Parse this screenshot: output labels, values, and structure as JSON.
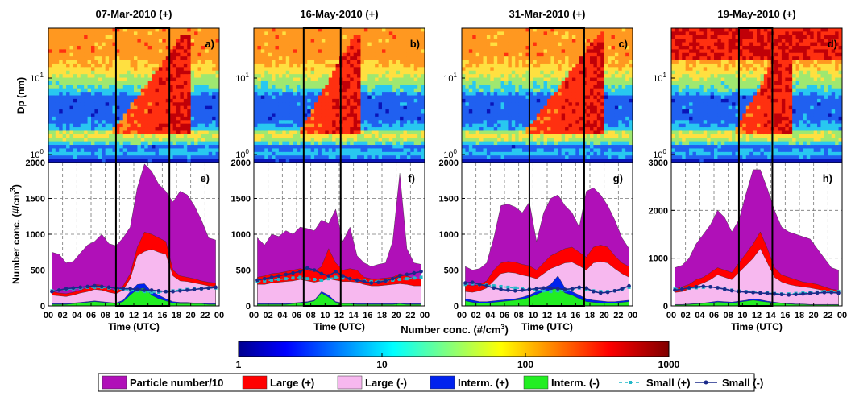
{
  "figure": {
    "colorbar_title": "Number conc. (#/cm",
    "colorbar_title_sup": "3",
    "colorbar_title_end": ")",
    "colorbar_ticks": [
      "1",
      "10",
      "100",
      "1000"
    ],
    "legend": [
      {
        "label": "Particle number/10",
        "color": "#b010b8",
        "style": "patch"
      },
      {
        "label": "Large (+)",
        "color": "#ff0000",
        "style": "patch"
      },
      {
        "label": "Large (-)",
        "color": "#f7b8ef",
        "style": "patch"
      },
      {
        "label": "Interm. (+)",
        "color": "#0022ee",
        "style": "patch"
      },
      {
        "label": "Interm. (-)",
        "color": "#22ee22",
        "style": "patch"
      },
      {
        "label": "Small (+)",
        "color": "#22b8c8",
        "style": "dashed-square"
      },
      {
        "label": "Small (-)",
        "color": "#1a2a8a",
        "style": "solid-dot"
      }
    ],
    "shared_labels": {
      "top_ylabel": "Dp (nm)",
      "bottom_ylabel": "Number conc. (#/cm",
      "bottom_ylabel_sup": "3",
      "bottom_ylabel_end": ")",
      "xlabel": "Time (UTC)",
      "xticks": [
        "00",
        "02",
        "04",
        "06",
        "08",
        "10",
        "12",
        "14",
        "16",
        "18",
        "20",
        "22",
        "00"
      ],
      "dp_ticks": [
        {
          "base": "10",
          "exp": "0"
        },
        {
          "base": "10",
          "exp": "1"
        }
      ]
    }
  },
  "chart_data": [
    {
      "type": "area",
      "title": "07-Mar-2010 (+)",
      "top_letter": "a)",
      "bottom_letter": "e)",
      "box_hours": [
        9.5,
        17
      ],
      "x": [
        0,
        1,
        2,
        3,
        4,
        5,
        6,
        7,
        8,
        9,
        10,
        11,
        12,
        13,
        14,
        15,
        16,
        17,
        18,
        19,
        20,
        21,
        22,
        23
      ],
      "ylim": [
        0,
        2000
      ],
      "yticks": [
        0,
        500,
        1000,
        1500,
        2000
      ],
      "series": [
        {
          "name": "Particle number/10",
          "values": [
            750,
            720,
            600,
            620,
            740,
            850,
            900,
            1000,
            870,
            840,
            950,
            1100,
            1650,
            1980,
            1880,
            1700,
            1600,
            1450,
            1600,
            1550,
            1400,
            1200,
            950,
            920
          ]
        },
        {
          "name": "Large (+)",
          "values": [
            200,
            180,
            170,
            190,
            220,
            260,
            300,
            290,
            240,
            210,
            280,
            450,
            820,
            1030,
            1000,
            950,
            900,
            500,
            420,
            400,
            380,
            350,
            330,
            320
          ]
        },
        {
          "name": "Large (-)",
          "values": [
            150,
            140,
            130,
            150,
            180,
            200,
            230,
            220,
            190,
            170,
            220,
            380,
            700,
            760,
            790,
            750,
            720,
            420,
            350,
            340,
            320,
            300,
            280,
            270
          ]
        },
        {
          "name": "Interm. (+)",
          "values": [
            30,
            30,
            30,
            40,
            50,
            60,
            70,
            60,
            50,
            40,
            80,
            200,
            300,
            310,
            200,
            150,
            100,
            60,
            50,
            50,
            40,
            40,
            30,
            30
          ]
        },
        {
          "name": "Interm. (-)",
          "values": [
            20,
            20,
            20,
            30,
            40,
            50,
            60,
            50,
            40,
            30,
            60,
            150,
            230,
            250,
            150,
            100,
            70,
            40,
            30,
            30,
            30,
            30,
            20,
            20
          ]
        },
        {
          "name": "Small (+)",
          "values": [
            210,
            220,
            230,
            240,
            250,
            260,
            260,
            260,
            250,
            240,
            230,
            220,
            210,
            200,
            190,
            190,
            200,
            210,
            220,
            230,
            240,
            240,
            250,
            250
          ]
        },
        {
          "name": "Small (-)",
          "values": [
            200,
            220,
            240,
            250,
            260,
            270,
            280,
            270,
            260,
            250,
            240,
            240,
            230,
            220,
            220,
            210,
            200,
            200,
            210,
            220,
            230,
            240,
            250,
            260
          ]
        }
      ]
    },
    {
      "type": "area",
      "title": "16-May-2010 (+)",
      "top_letter": "b)",
      "bottom_letter": "f)",
      "box_hours": [
        7,
        12.2
      ],
      "x": [
        0,
        1,
        2,
        3,
        4,
        5,
        6,
        7,
        8,
        9,
        10,
        11,
        12,
        13,
        14,
        15,
        16,
        17,
        18,
        19,
        20,
        21,
        22,
        23
      ],
      "ylim": [
        0,
        2000
      ],
      "yticks": [
        0,
        500,
        1000,
        1500,
        2000
      ],
      "series": [
        {
          "name": "Particle number/10",
          "values": [
            950,
            850,
            1000,
            970,
            1050,
            1000,
            1100,
            1080,
            1050,
            1200,
            1150,
            1350,
            900,
            1100,
            700,
            600,
            550,
            580,
            600,
            900,
            1850,
            800,
            600,
            580
          ]
        },
        {
          "name": "Large (+)",
          "values": [
            400,
            420,
            450,
            460,
            480,
            500,
            520,
            500,
            480,
            550,
            800,
            600,
            500,
            520,
            500,
            400,
            380,
            380,
            390,
            400,
            450,
            420,
            380,
            380
          ]
        },
        {
          "name": "Large (-)",
          "values": [
            300,
            300,
            320,
            330,
            340,
            350,
            370,
            350,
            330,
            350,
            380,
            360,
            340,
            340,
            330,
            300,
            280,
            280,
            290,
            300,
            310,
            300,
            280,
            280
          ]
        },
        {
          "name": "Interm. (+)",
          "values": [
            30,
            30,
            30,
            30,
            30,
            40,
            50,
            60,
            80,
            200,
            150,
            60,
            40,
            40,
            30,
            30,
            30,
            30,
            30,
            30,
            40,
            30,
            30,
            30
          ]
        },
        {
          "name": "Interm. (-)",
          "values": [
            20,
            20,
            20,
            20,
            20,
            30,
            40,
            50,
            70,
            180,
            120,
            50,
            30,
            30,
            20,
            20,
            20,
            20,
            20,
            20,
            30,
            20,
            20,
            20
          ]
        },
        {
          "name": "Small (+)",
          "values": [
            340,
            350,
            360,
            370,
            380,
            390,
            400,
            380,
            370,
            360,
            380,
            400,
            390,
            380,
            360,
            350,
            340,
            340,
            350,
            360,
            370,
            380,
            390,
            400
          ]
        },
        {
          "name": "Small (-)",
          "values": [
            360,
            380,
            400,
            420,
            440,
            460,
            480,
            530,
            500,
            450,
            420,
            480,
            420,
            380,
            360,
            340,
            320,
            330,
            350,
            380,
            420,
            440,
            460,
            480
          ]
        }
      ]
    },
    {
      "type": "area",
      "title": "31-Mar-2010 (+)",
      "top_letter": "c)",
      "bottom_letter": "g)",
      "box_hours": [
        9.5,
        17.2
      ],
      "x": [
        0,
        1,
        2,
        3,
        4,
        5,
        6,
        7,
        8,
        9,
        10,
        11,
        12,
        13,
        14,
        15,
        16,
        17,
        18,
        19,
        20,
        21,
        22,
        23
      ],
      "ylim": [
        0,
        2000
      ],
      "yticks": [
        0,
        500,
        1000,
        1500,
        2000
      ],
      "series": [
        {
          "name": "Particle number/10",
          "values": [
            550,
            500,
            520,
            600,
            950,
            1400,
            1420,
            1380,
            1300,
            1450,
            900,
            1300,
            1500,
            1550,
            1400,
            1300,
            1100,
            1600,
            1650,
            1550,
            1400,
            1200,
            950,
            800
          ]
        },
        {
          "name": "Large (+)",
          "values": [
            300,
            280,
            300,
            350,
            500,
            600,
            620,
            610,
            580,
            560,
            500,
            600,
            700,
            750,
            800,
            820,
            750,
            680,
            820,
            850,
            820,
            700,
            600,
            550
          ]
        },
        {
          "name": "Large (-)",
          "values": [
            200,
            190,
            210,
            250,
            350,
            450,
            470,
            460,
            430,
            410,
            380,
            450,
            520,
            560,
            600,
            610,
            560,
            500,
            600,
            620,
            600,
            520,
            450,
            400
          ]
        },
        {
          "name": "Interm. (+)",
          "values": [
            100,
            80,
            60,
            60,
            70,
            80,
            90,
            100,
            120,
            150,
            200,
            250,
            300,
            420,
            250,
            200,
            150,
            100,
            80,
            70,
            60,
            60,
            70,
            80
          ]
        },
        {
          "name": "Interm. (-)",
          "values": [
            70,
            50,
            40,
            40,
            50,
            60,
            70,
            80,
            90,
            120,
            160,
            200,
            220,
            260,
            180,
            150,
            100,
            60,
            50,
            40,
            40,
            40,
            50,
            60
          ]
        },
        {
          "name": "Small (+)",
          "values": [
            300,
            310,
            300,
            290,
            280,
            270,
            260,
            250,
            240,
            230,
            220,
            210,
            200,
            210,
            220,
            230,
            250,
            230,
            210,
            200,
            200,
            210,
            230,
            260
          ]
        },
        {
          "name": "Small (-)",
          "values": [
            320,
            330,
            300,
            280,
            250,
            230,
            220,
            210,
            220,
            230,
            240,
            250,
            250,
            240,
            230,
            240,
            260,
            250,
            200,
            180,
            190,
            210,
            240,
            280
          ]
        }
      ]
    },
    {
      "type": "area",
      "title": "19-May-2010 (+)",
      "top_letter": "d)",
      "bottom_letter": "h)",
      "box_hours": [
        9.5,
        14.2
      ],
      "x": [
        0,
        1,
        2,
        3,
        4,
        5,
        6,
        7,
        8,
        9,
        10,
        11,
        12,
        13,
        14,
        15,
        16,
        17,
        18,
        19,
        20,
        21,
        22,
        23
      ],
      "ylim": [
        0,
        3000
      ],
      "yticks": [
        0,
        1000,
        2000,
        3000
      ],
      "series": [
        {
          "name": "Particle number/10",
          "values": [
            800,
            850,
            1000,
            1300,
            1500,
            1700,
            2000,
            1850,
            1550,
            1800,
            2350,
            2850,
            2850,
            2450,
            2000,
            1650,
            1550,
            1500,
            1450,
            1400,
            1200,
            1000,
            800,
            750
          ]
        },
        {
          "name": "Large (+)",
          "values": [
            350,
            400,
            450,
            550,
            600,
            700,
            800,
            750,
            700,
            900,
            1100,
            1300,
            1550,
            1200,
            800,
            650,
            600,
            550,
            500,
            480,
            450,
            400,
            350,
            330
          ]
        },
        {
          "name": "Large (-)",
          "values": [
            280,
            300,
            350,
            420,
            480,
            550,
            650,
            600,
            550,
            700,
            850,
            1000,
            1200,
            900,
            600,
            500,
            450,
            420,
            400,
            380,
            350,
            320,
            280,
            260
          ]
        },
        {
          "name": "Interm. (+)",
          "values": [
            30,
            30,
            40,
            50,
            60,
            80,
            100,
            90,
            80,
            100,
            120,
            150,
            130,
            100,
            80,
            60,
            50,
            40,
            40,
            30,
            30,
            30,
            30,
            30
          ]
        },
        {
          "name": "Interm. (-)",
          "values": [
            20,
            20,
            30,
            40,
            50,
            60,
            80,
            70,
            60,
            80,
            100,
            120,
            100,
            80,
            60,
            50,
            40,
            30,
            30,
            20,
            20,
            20,
            20,
            20
          ]
        },
        {
          "name": "Small (+)",
          "values": [
            350,
            360,
            370,
            380,
            390,
            400,
            380,
            350,
            330,
            310,
            300,
            290,
            280,
            270,
            260,
            250,
            250,
            260,
            270,
            280,
            290,
            300,
            300,
            300
          ]
        },
        {
          "name": "Small (-)",
          "values": [
            330,
            350,
            380,
            400,
            410,
            400,
            380,
            350,
            320,
            300,
            290,
            280,
            270,
            260,
            250,
            240,
            230,
            240,
            250,
            260,
            270,
            280,
            280,
            270
          ]
        }
      ]
    }
  ]
}
